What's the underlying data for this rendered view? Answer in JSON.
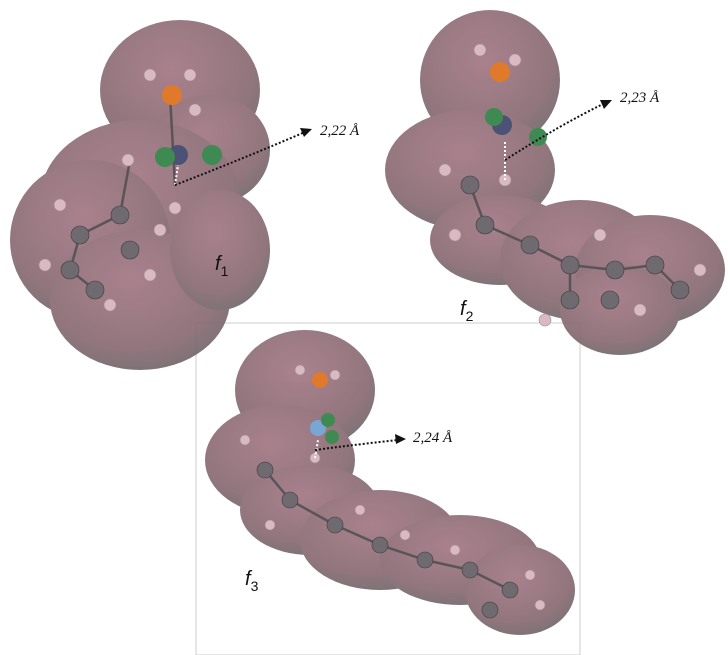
{
  "panels": [
    {
      "letter": "f",
      "subscript": "1",
      "distance": "2,22 Å"
    },
    {
      "letter": "f",
      "subscript": "2",
      "distance": "2,23 Å"
    },
    {
      "letter": "f",
      "subscript": "3",
      "distance": "2,24 Å"
    }
  ]
}
